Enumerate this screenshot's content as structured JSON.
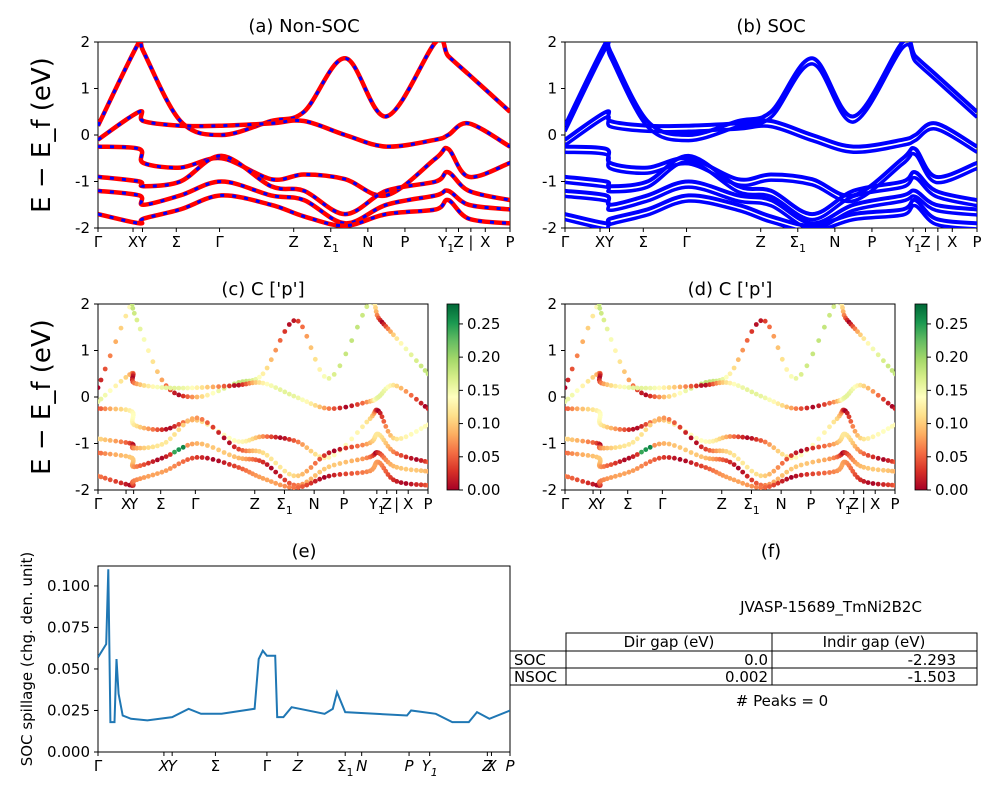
{
  "figure": {
    "kpoints": [
      "Γ",
      "X",
      "Y",
      "Σ",
      "Γ",
      "Z",
      "Σ₁",
      "N",
      "P",
      "Y₁",
      "Z",
      "|",
      "X",
      "P"
    ],
    "kpoints_c": [
      "Γ",
      "X",
      "Y",
      "Σ",
      "Γ",
      "Z",
      "Σ₁",
      "N",
      "P",
      "Y₁",
      "Z",
      "|",
      "X",
      "P"
    ],
    "kpoints_e": [
      "Γ",
      "X",
      "Y",
      "Σ",
      "Γ",
      "Z",
      "Σ₁",
      "N",
      "P",
      "Y₁",
      "Z",
      "X",
      "P"
    ],
    "colorbar_ticks": [
      "0.00",
      "0.05",
      "0.10",
      "0.15",
      "0.20",
      "0.25"
    ],
    "colors": {
      "nonsoc_line": "#ff0000",
      "nonsoc_dash": "#0000ff",
      "soc_line": "#0000ff",
      "spillage": "#1f77b4"
    }
  },
  "chart_data": [
    {
      "panel": "a",
      "type": "line",
      "title": "(a) Non-SOC",
      "ylabel": "E − E_f (eV)",
      "ylim": [
        -2,
        2
      ],
      "yticks": [
        2,
        1,
        0,
        -1,
        -2
      ],
      "x": [
        0.0,
        0.1,
        0.11,
        0.2,
        0.3,
        0.42,
        0.5,
        0.6,
        0.7,
        0.82,
        0.85,
        0.9,
        1.0
      ],
      "series": [
        {
          "values": [
            0.2,
            2.0,
            1.8,
            0.3,
            0.0,
            0.3,
            0.5,
            1.65,
            0.4,
            2.0,
            1.7,
            1.3,
            0.5
          ]
        },
        {
          "values": [
            -0.1,
            0.5,
            0.3,
            0.2,
            0.2,
            0.25,
            0.3,
            0.0,
            -0.25,
            -0.1,
            0.0,
            0.25,
            -0.25
          ]
        },
        {
          "values": [
            -0.25,
            -0.3,
            -0.6,
            -0.7,
            -0.5,
            -0.95,
            -0.85,
            -0.95,
            -1.3,
            -0.5,
            -0.3,
            -0.9,
            -0.6
          ]
        },
        {
          "values": [
            -0.9,
            -1.0,
            -1.1,
            -1.0,
            -0.45,
            -1.1,
            -1.2,
            -1.7,
            -1.2,
            -1.0,
            -0.8,
            -1.2,
            -1.4
          ]
        },
        {
          "values": [
            -1.2,
            -1.3,
            -1.5,
            -1.3,
            -1.0,
            -1.3,
            -1.4,
            -1.9,
            -1.5,
            -1.3,
            -1.2,
            -1.5,
            -1.6
          ]
        },
        {
          "values": [
            -1.7,
            -1.9,
            -1.8,
            -1.6,
            -1.3,
            -1.5,
            -1.75,
            -1.95,
            -1.7,
            -1.6,
            -1.4,
            -1.8,
            -1.9
          ]
        }
      ]
    },
    {
      "panel": "b",
      "type": "line",
      "title": "(b) SOC",
      "ylim": [
        -2,
        2
      ],
      "yticks": [
        2,
        1,
        0,
        -1,
        -2
      ],
      "x": [
        0.0,
        0.1,
        0.11,
        0.2,
        0.3,
        0.42,
        0.5,
        0.6,
        0.7,
        0.82,
        0.85,
        0.9,
        1.0
      ],
      "series": [
        {
          "values": [
            0.2,
            2.0,
            1.8,
            0.3,
            0.0,
            0.3,
            0.5,
            1.65,
            0.4,
            2.0,
            1.7,
            1.3,
            0.5
          ]
        },
        {
          "values": [
            -0.1,
            0.5,
            0.3,
            0.2,
            0.2,
            0.25,
            0.3,
            0.0,
            -0.25,
            -0.1,
            0.0,
            0.25,
            -0.25
          ]
        },
        {
          "values": [
            -0.25,
            -0.3,
            -0.6,
            -0.7,
            -0.5,
            -0.95,
            -0.85,
            -0.95,
            -1.3,
            -0.5,
            -0.3,
            -0.9,
            -0.6
          ]
        },
        {
          "values": [
            -0.9,
            -1.0,
            -1.1,
            -1.0,
            -0.45,
            -1.1,
            -1.2,
            -1.7,
            -1.2,
            -1.0,
            -0.8,
            -1.2,
            -1.4
          ]
        },
        {
          "values": [
            -1.2,
            -1.3,
            -1.5,
            -1.3,
            -1.0,
            -1.3,
            -1.4,
            -1.9,
            -1.5,
            -1.3,
            -1.2,
            -1.5,
            -1.6
          ]
        },
        {
          "values": [
            -1.7,
            -1.9,
            -1.8,
            -1.6,
            -1.3,
            -1.5,
            -1.75,
            -1.95,
            -1.7,
            -1.6,
            -1.4,
            -1.8,
            -1.9
          ]
        }
      ]
    },
    {
      "panel": "c",
      "type": "scatter",
      "title": "(c)  C ['p']",
      "ylabel": "E − E_f (eV)",
      "ylim": [
        -2,
        2
      ],
      "yticks": [
        2,
        1,
        0,
        -1,
        -2
      ],
      "colorbar": [
        0.0,
        0.28
      ]
    },
    {
      "panel": "d",
      "type": "scatter",
      "title": "(d) C ['p']",
      "ylim": [
        -2,
        2
      ],
      "yticks": [
        2,
        1,
        0,
        -1,
        -2
      ],
      "colorbar": [
        0.0,
        0.28
      ]
    },
    {
      "panel": "e",
      "type": "line",
      "title": "(e)",
      "ylabel": "SOC spillage (chg. den. unit)",
      "ylim": [
        0,
        0.112
      ],
      "yticks": [
        "0.000",
        "0.025",
        "0.050",
        "0.075",
        "0.100"
      ],
      "x": [
        0.0,
        0.02,
        0.025,
        0.03,
        0.04,
        0.045,
        0.05,
        0.06,
        0.08,
        0.12,
        0.18,
        0.22,
        0.25,
        0.3,
        0.38,
        0.39,
        0.4,
        0.41,
        0.43,
        0.435,
        0.45,
        0.47,
        0.55,
        0.57,
        0.58,
        0.6,
        0.75,
        0.76,
        0.82,
        0.86,
        0.9,
        0.92,
        0.95,
        1.0
      ],
      "values": [
        0.057,
        0.065,
        0.11,
        0.018,
        0.018,
        0.056,
        0.035,
        0.022,
        0.02,
        0.019,
        0.021,
        0.026,
        0.023,
        0.023,
        0.026,
        0.056,
        0.061,
        0.058,
        0.058,
        0.021,
        0.021,
        0.027,
        0.023,
        0.026,
        0.036,
        0.024,
        0.022,
        0.025,
        0.023,
        0.018,
        0.018,
        0.024,
        0.02,
        0.025
      ]
    }
  ],
  "panel_f": {
    "title": "(f)",
    "material": "JVASP-15689_TmNi2B2C",
    "headers": [
      "Dir gap (eV)",
      "Indir gap (eV)"
    ],
    "rows": [
      {
        "label": "SOC",
        "dir": "0.0",
        "indir": "-2.293"
      },
      {
        "label": "NSOC",
        "dir": "0.002",
        "indir": "-1.503"
      }
    ],
    "peaks": "# Peaks = 0"
  }
}
